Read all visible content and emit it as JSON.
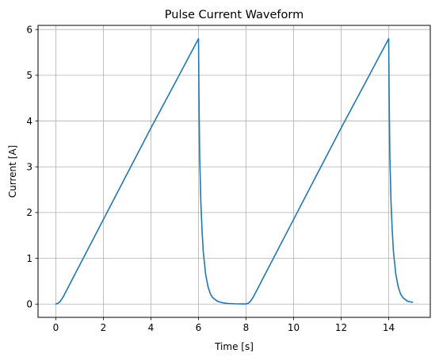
{
  "chart_data": {
    "type": "line",
    "title": "Pulse Current Waveform",
    "xlabel": "Time [s]",
    "ylabel": "Current [A]",
    "xlim": [
      -0.75,
      15.75
    ],
    "ylim": [
      -0.29,
      6.09
    ],
    "xticks": [
      0,
      2,
      4,
      6,
      8,
      10,
      12,
      14
    ],
    "yticks": [
      0,
      1,
      2,
      3,
      4,
      5,
      6
    ],
    "grid": true,
    "legend": "none",
    "colors": {
      "line": "#1f77b4",
      "grid": "#b0b0b0",
      "axes": "#000000"
    },
    "series": [
      {
        "x": [
          0,
          0.1,
          0.2,
          0.3,
          0.4,
          0.5,
          0.6,
          0.7,
          0.8,
          1.0,
          2.0,
          3.0,
          4.0,
          5.0,
          6.0,
          6.02,
          6.05,
          6.1,
          6.15,
          6.2,
          6.3,
          6.4,
          6.5,
          6.6,
          6.8,
          7.0,
          7.2,
          7.5,
          7.8,
          8.0,
          8.1,
          8.2,
          8.3,
          8.4,
          8.5,
          8.6,
          8.7,
          8.8,
          9.0,
          10.0,
          11.0,
          12.0,
          13.0,
          14.0,
          14.02,
          14.05,
          14.1,
          14.15,
          14.2,
          14.3,
          14.4,
          14.5,
          14.6,
          14.8,
          15.0
        ],
        "y": [
          0,
          0.02,
          0.07,
          0.15,
          0.25,
          0.35,
          0.45,
          0.55,
          0.65,
          0.85,
          1.85,
          2.85,
          3.85,
          4.82,
          5.8,
          4.5,
          3.2,
          2.2,
          1.6,
          1.15,
          0.65,
          0.38,
          0.22,
          0.14,
          0.06,
          0.03,
          0.015,
          0.007,
          0.003,
          0.002,
          0.02,
          0.07,
          0.15,
          0.25,
          0.35,
          0.45,
          0.55,
          0.65,
          0.85,
          1.85,
          2.85,
          3.85,
          4.82,
          5.8,
          4.5,
          3.2,
          2.2,
          1.6,
          1.15,
          0.65,
          0.38,
          0.22,
          0.14,
          0.06,
          0.04
        ]
      }
    ]
  }
}
